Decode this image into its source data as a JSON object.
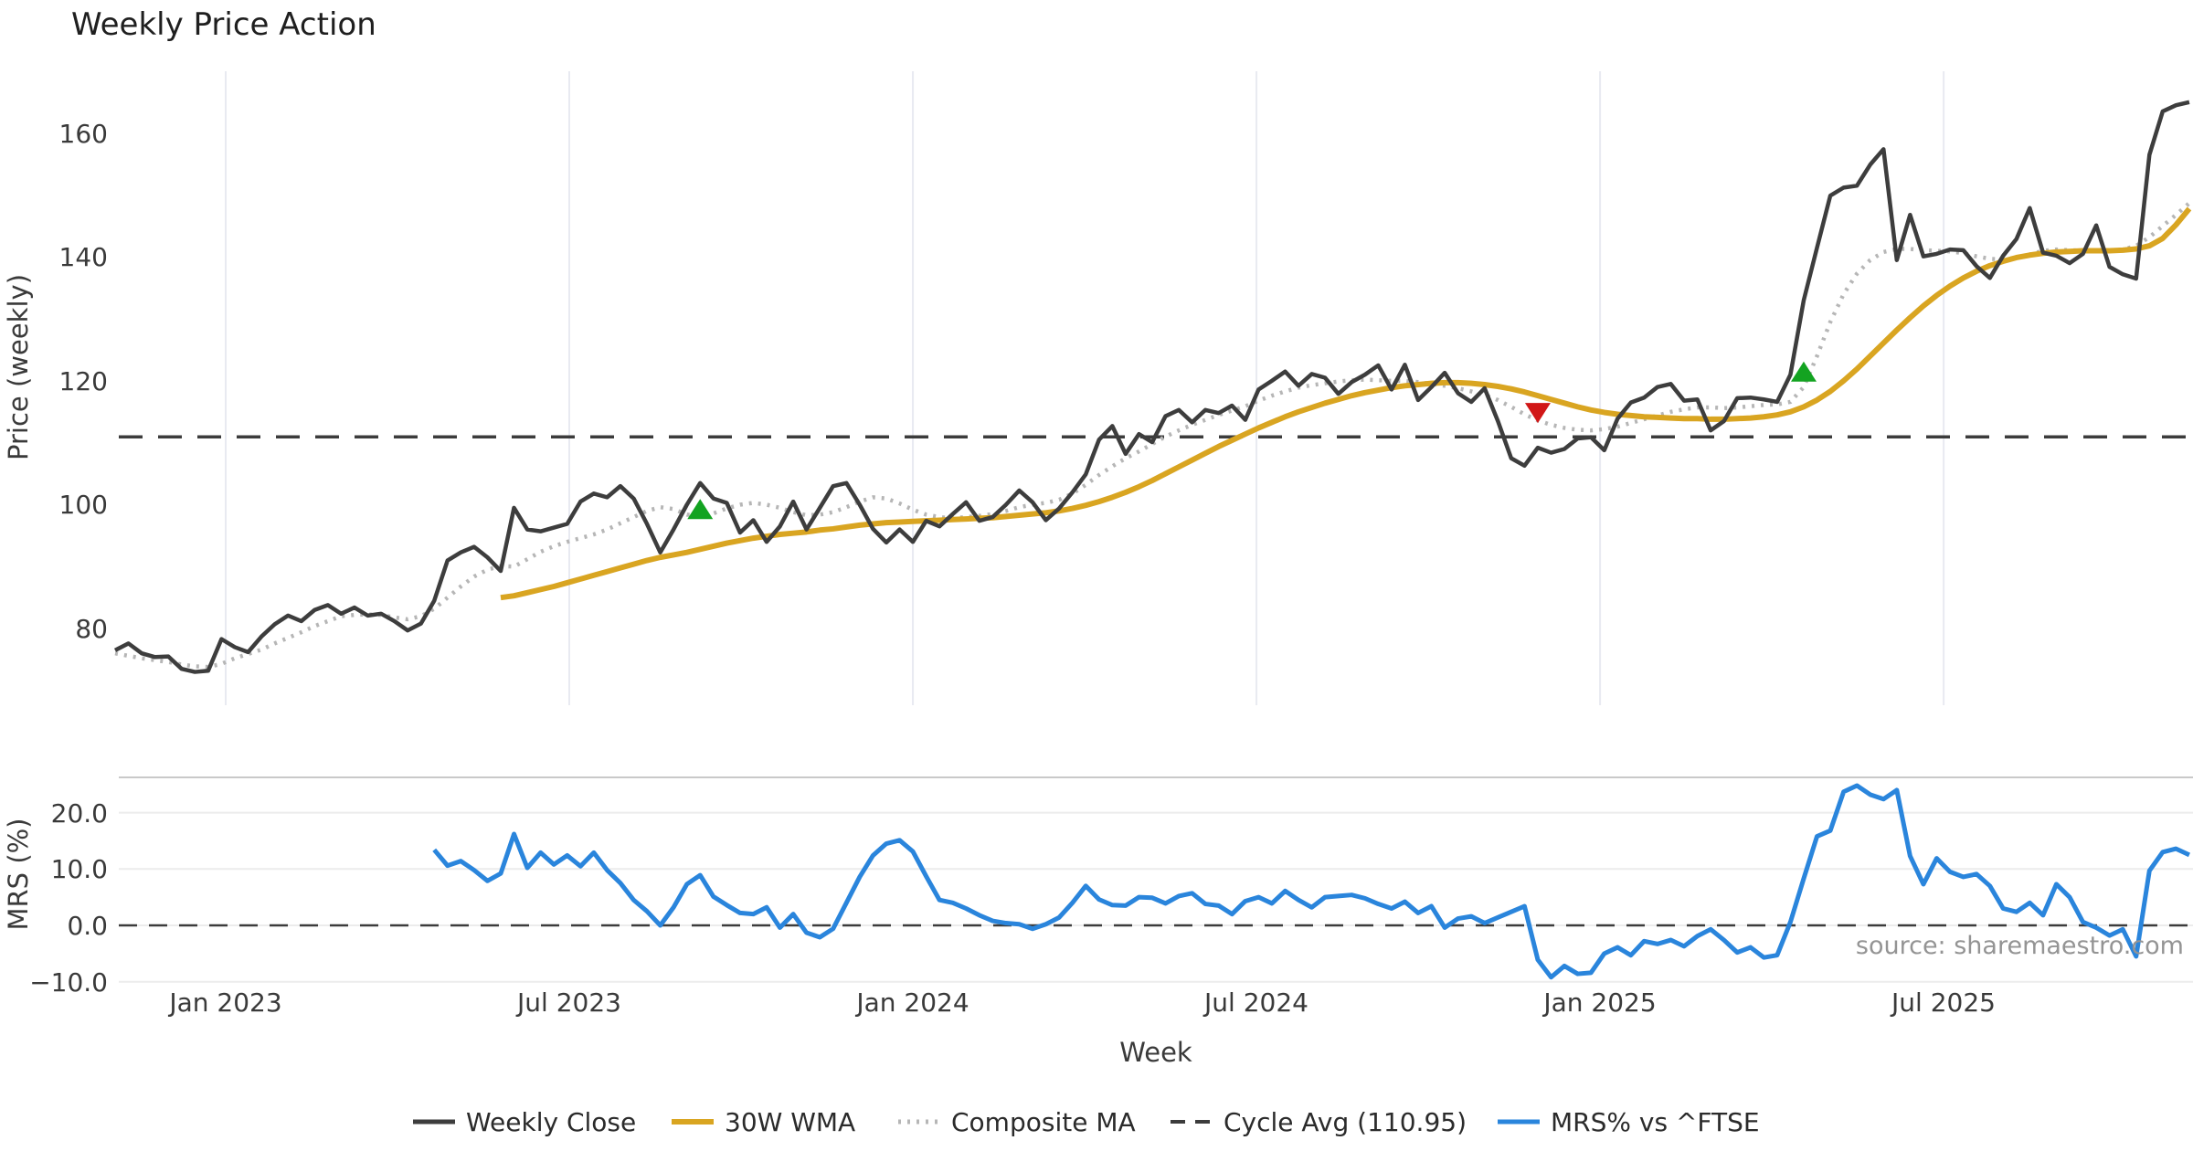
{
  "title": "Weekly Price Action",
  "source_note": "source: sharemaestro.com",
  "colors": {
    "weekly_close": "#3d3d3d",
    "wma_30w": "#d9a521",
    "composite_ma": "#b6b6b6",
    "cycle_avg": "#3c3c3c",
    "mrs_line": "#2a85dc",
    "buy_marker": "#13a321",
    "sell_marker": "#d11717",
    "grid_vertical": "#e8eaf1",
    "grid_horizontal": "#ececec",
    "panel_spine": "#c9c9c9",
    "tick_text": "#3a3a3a",
    "source_text": "#949494"
  },
  "chart_data": [
    {
      "type": "line",
      "title": "Weekly Price Action",
      "ylabel": "Price (weekly)",
      "ylim": [
        67.6,
        170.0
      ],
      "yticks": [
        160,
        140,
        120,
        100,
        80
      ],
      "ytick_labels": [
        "160",
        "140",
        "120",
        "100",
        "80"
      ],
      "x_tick_weeks": [
        8.315,
        34.157,
        59.999,
        85.841,
        111.683,
        137.525
      ],
      "x_tick_labels": [
        "Jan 2023",
        "Jul 2023",
        "Jan 2024",
        "Jul 2024",
        "Jan 2025",
        "Jul 2025"
      ],
      "grid": "vertical",
      "legend_position": "bottom-center",
      "cycle_avg_value": 110.95,
      "series": [
        {
          "name": "Weekly Close",
          "start_week": 0,
          "values": [
            76.5,
            77.6,
            76.0,
            75.4,
            75.5,
            73.5,
            73.0,
            73.2,
            78.3,
            77.0,
            76.2,
            78.7,
            80.7,
            82.1,
            81.2,
            83.0,
            83.8,
            82.4,
            83.4,
            82.1,
            82.4,
            81.2,
            79.7,
            80.8,
            84.5,
            91.0,
            92.3,
            93.2,
            91.5,
            89.3,
            99.5,
            96.0,
            95.7,
            96.3,
            96.9,
            100.5,
            101.8,
            101.2,
            103.0,
            101.0,
            96.9,
            92.3,
            96.0,
            100.0,
            103.5,
            101.0,
            100.3,
            95.5,
            97.5,
            94.0,
            96.5,
            100.5,
            96.0,
            99.5,
            103.0,
            103.5,
            100.0,
            96.1,
            93.9,
            96.0,
            94.0,
            97.4,
            96.5,
            98.5,
            100.4,
            97.4,
            98.0,
            100.0,
            102.3,
            100.4,
            97.5,
            99.4,
            102.0,
            104.9,
            110.5,
            112.7,
            108.2,
            111.4,
            110.1,
            114.3,
            115.3,
            113.3,
            115.3,
            114.8,
            116.0,
            113.7,
            118.6,
            120.0,
            121.5,
            119.2,
            121.1,
            120.5,
            117.9,
            119.8,
            121.0,
            122.5,
            118.6,
            122.6,
            116.9,
            119.0,
            121.3,
            118.0,
            116.6,
            118.8,
            113.5,
            107.5,
            106.3,
            109.2,
            108.4,
            109.0,
            110.7,
            110.9,
            108.8,
            113.9,
            116.5,
            117.3,
            119.0,
            119.5,
            116.8,
            117.0,
            112.0,
            113.5,
            117.2,
            117.3,
            117.0,
            116.6,
            121.0,
            133.0,
            141.5,
            149.9,
            151.2,
            151.5,
            154.9,
            157.4,
            139.5,
            146.8,
            140.1,
            140.5,
            141.2,
            141.1,
            138.5,
            136.6,
            140.2,
            142.9,
            147.9,
            140.7,
            140.2,
            139.0,
            140.5,
            145.1,
            138.4,
            137.2,
            136.5,
            156.5,
            163.5,
            164.5,
            165.0
          ]
        },
        {
          "name": "30W WMA",
          "start_week": 29,
          "values": [
            85.0,
            85.3,
            85.8,
            86.3,
            86.8,
            87.4,
            88.0,
            88.6,
            89.2,
            89.8,
            90.4,
            91.0,
            91.5,
            91.9,
            92.3,
            92.8,
            93.3,
            93.8,
            94.2,
            94.6,
            94.9,
            95.2,
            95.4,
            95.6,
            95.9,
            96.1,
            96.4,
            96.7,
            96.9,
            97.1,
            97.2,
            97.3,
            97.4,
            97.5,
            97.6,
            97.7,
            97.8,
            97.9,
            98.1,
            98.3,
            98.5,
            98.7,
            99.0,
            99.4,
            99.9,
            100.5,
            101.2,
            102.0,
            102.9,
            103.9,
            105.0,
            106.1,
            107.2,
            108.3,
            109.4,
            110.4,
            111.4,
            112.4,
            113.3,
            114.2,
            115.0,
            115.7,
            116.4,
            117.0,
            117.6,
            118.1,
            118.5,
            118.9,
            119.2,
            119.4,
            119.6,
            119.7,
            119.7,
            119.6,
            119.4,
            119.1,
            118.7,
            118.2,
            117.6,
            117.0,
            116.4,
            115.8,
            115.3,
            114.9,
            114.6,
            114.4,
            114.2,
            114.1,
            114.0,
            113.9,
            113.9,
            113.8,
            113.8,
            113.9,
            114.0,
            114.2,
            114.5,
            115.0,
            115.8,
            116.9,
            118.3,
            120.0,
            121.9,
            124.0,
            126.1,
            128.2,
            130.2,
            132.1,
            133.8,
            135.3,
            136.6,
            137.7,
            138.6,
            139.3,
            139.9,
            140.3,
            140.6,
            140.8,
            140.9,
            141.0,
            141.0,
            141.0,
            141.1,
            141.3,
            141.8,
            143.0,
            145.2,
            147.8
          ]
        },
        {
          "name": "Composite MA",
          "start_week": 0,
          "values": [
            76.0,
            75.6,
            75.2,
            74.9,
            74.6,
            74.2,
            73.9,
            73.8,
            74.3,
            75.2,
            75.9,
            76.6,
            77.6,
            78.5,
            79.4,
            80.4,
            81.2,
            82.0,
            82.2,
            82.3,
            82.2,
            81.8,
            81.5,
            82.0,
            83.2,
            85.0,
            86.8,
            88.4,
            89.5,
            90.1,
            90.0,
            91.2,
            92.4,
            93.3,
            94.0,
            94.6,
            95.2,
            96.0,
            97.0,
            98.0,
            99.0,
            99.6,
            99.3,
            98.4,
            98.2,
            98.6,
            99.4,
            100.0,
            100.3,
            100.0,
            99.5,
            98.8,
            98.3,
            98.4,
            98.8,
            99.6,
            100.5,
            101.2,
            101.0,
            100.2,
            99.2,
            98.4,
            98.0,
            97.8,
            98.0,
            98.2,
            98.5,
            99.0,
            99.6,
            100.0,
            100.3,
            100.8,
            101.8,
            103.2,
            104.8,
            106.2,
            107.5,
            108.6,
            109.8,
            111.0,
            112.0,
            112.9,
            113.7,
            114.5,
            115.2,
            115.9,
            116.8,
            117.6,
            118.3,
            118.9,
            119.3,
            119.6,
            119.9,
            120.1,
            120.2,
            120.1,
            120.0,
            120.0,
            119.8,
            119.5,
            119.2,
            118.8,
            118.3,
            117.7,
            116.9,
            115.8,
            114.6,
            113.6,
            112.9,
            112.4,
            112.1,
            112.0,
            112.2,
            112.6,
            113.2,
            113.8,
            114.4,
            115.0,
            115.4,
            115.7,
            115.7,
            115.6,
            115.7,
            115.9,
            116.1,
            116.2,
            116.6,
            119.0,
            124.0,
            129.5,
            134.0,
            137.3,
            139.5,
            140.8,
            141.3,
            141.3,
            141.1,
            141.0,
            140.9,
            140.6,
            140.1,
            139.7,
            139.6,
            139.9,
            140.4,
            141.0,
            141.2,
            141.1,
            141.0,
            141.0,
            141.0,
            141.2,
            141.8,
            143.2,
            145.0,
            146.8,
            148.7
          ]
        }
      ],
      "markers": {
        "buy_signals": [
          {
            "week": 44,
            "price": 99.3
          },
          {
            "week": 127,
            "price": 121.5
          }
        ],
        "sell_signals": [
          {
            "week": 107,
            "price": 114.8
          }
        ]
      }
    },
    {
      "type": "line",
      "ylabel": "MRS (%)",
      "xlabel": "Week",
      "ylim": [
        -11.7,
        26.3
      ],
      "yticks": [
        20.0,
        10.0,
        0.0,
        -10.0
      ],
      "ytick_labels": [
        "20.0",
        "10.0",
        "0.0",
        "−10.0"
      ],
      "zero_line": 0.0,
      "grid": "horizontal",
      "series": [
        {
          "name": "MRS% vs ^FTSE",
          "start_week": 24,
          "values": [
            13.4,
            10.6,
            11.4,
            9.8,
            7.9,
            9.2,
            16.2,
            10.2,
            12.9,
            10.8,
            12.4,
            10.5,
            12.9,
            9.8,
            7.5,
            4.5,
            2.5,
            0.0,
            3.2,
            7.3,
            8.9,
            5.1,
            3.6,
            2.2,
            2.0,
            3.2,
            -0.4,
            2.0,
            -1.3,
            -2.1,
            -0.6,
            4.0,
            8.6,
            12.4,
            14.5,
            15.1,
            13.1,
            8.7,
            4.5,
            4.0,
            3.0,
            1.8,
            0.8,
            0.4,
            0.2,
            -0.6,
            0.2,
            1.4,
            4.0,
            7.0,
            4.6,
            3.6,
            3.5,
            5.0,
            4.9,
            3.9,
            5.2,
            5.7,
            3.8,
            3.5,
            2.0,
            4.3,
            5.0,
            3.9,
            6.1,
            4.5,
            3.2,
            5.0,
            5.2,
            5.4,
            4.8,
            3.8,
            3.0,
            4.2,
            2.2,
            3.4,
            -0.4,
            1.2,
            1.6,
            0.4,
            1.4,
            2.4,
            3.4,
            -6.1,
            -9.2,
            -7.2,
            -8.6,
            -8.4,
            -5.0,
            -3.9,
            -5.3,
            -2.8,
            -3.3,
            -2.6,
            -3.7,
            -1.9,
            -0.7,
            -2.6,
            -4.8,
            -3.9,
            -5.7,
            -5.3,
            0.6,
            8.3,
            15.8,
            16.8,
            23.7,
            24.8,
            23.2,
            22.4,
            24.0,
            12.3,
            7.3,
            11.9,
            9.5,
            8.6,
            9.1,
            7.0,
            3.0,
            2.4,
            4.0,
            1.8,
            7.3,
            5.0,
            0.6,
            -0.4,
            -1.8,
            -0.7,
            -5.5,
            9.7,
            13.0,
            13.6,
            12.5
          ]
        }
      ]
    }
  ],
  "legend": {
    "items": [
      {
        "label": "Weekly Close",
        "style": "solid",
        "color_key": "weekly_close"
      },
      {
        "label": "30W WMA",
        "style": "solid",
        "color_key": "wma_30w"
      },
      {
        "label": "Composite MA",
        "style": "dotted",
        "color_key": "composite_ma"
      },
      {
        "label": "Cycle Avg (110.95)",
        "style": "dashed",
        "color_key": "cycle_avg"
      },
      {
        "label": "MRS% vs ^FTSE",
        "style": "solid",
        "color_key": "mrs_line"
      }
    ]
  }
}
